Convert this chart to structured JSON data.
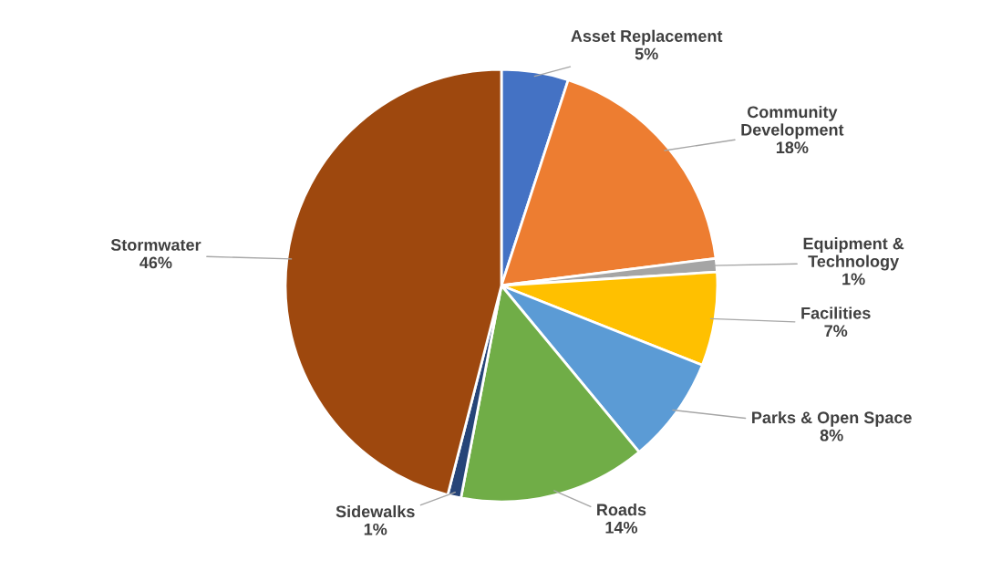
{
  "chart_data": {
    "type": "pie",
    "categories": [
      "Asset Replacement",
      "Community Development",
      "Equipment & Technology",
      "Facilities",
      "Parks & Open Space",
      "Roads",
      "Sidewalks",
      "Stormwater"
    ],
    "values": [
      5,
      18,
      1,
      7,
      8,
      14,
      1,
      46
    ],
    "value_labels": [
      "5%",
      "18%",
      "1%",
      "7%",
      "8%",
      "14%",
      "1%",
      "46%"
    ],
    "colors": [
      "#4472c4",
      "#ed7d31",
      "#a5a5a5",
      "#ffc000",
      "#5b9bd5",
      "#70ad47",
      "#264478",
      "#9e480e"
    ],
    "legend": false
  }
}
